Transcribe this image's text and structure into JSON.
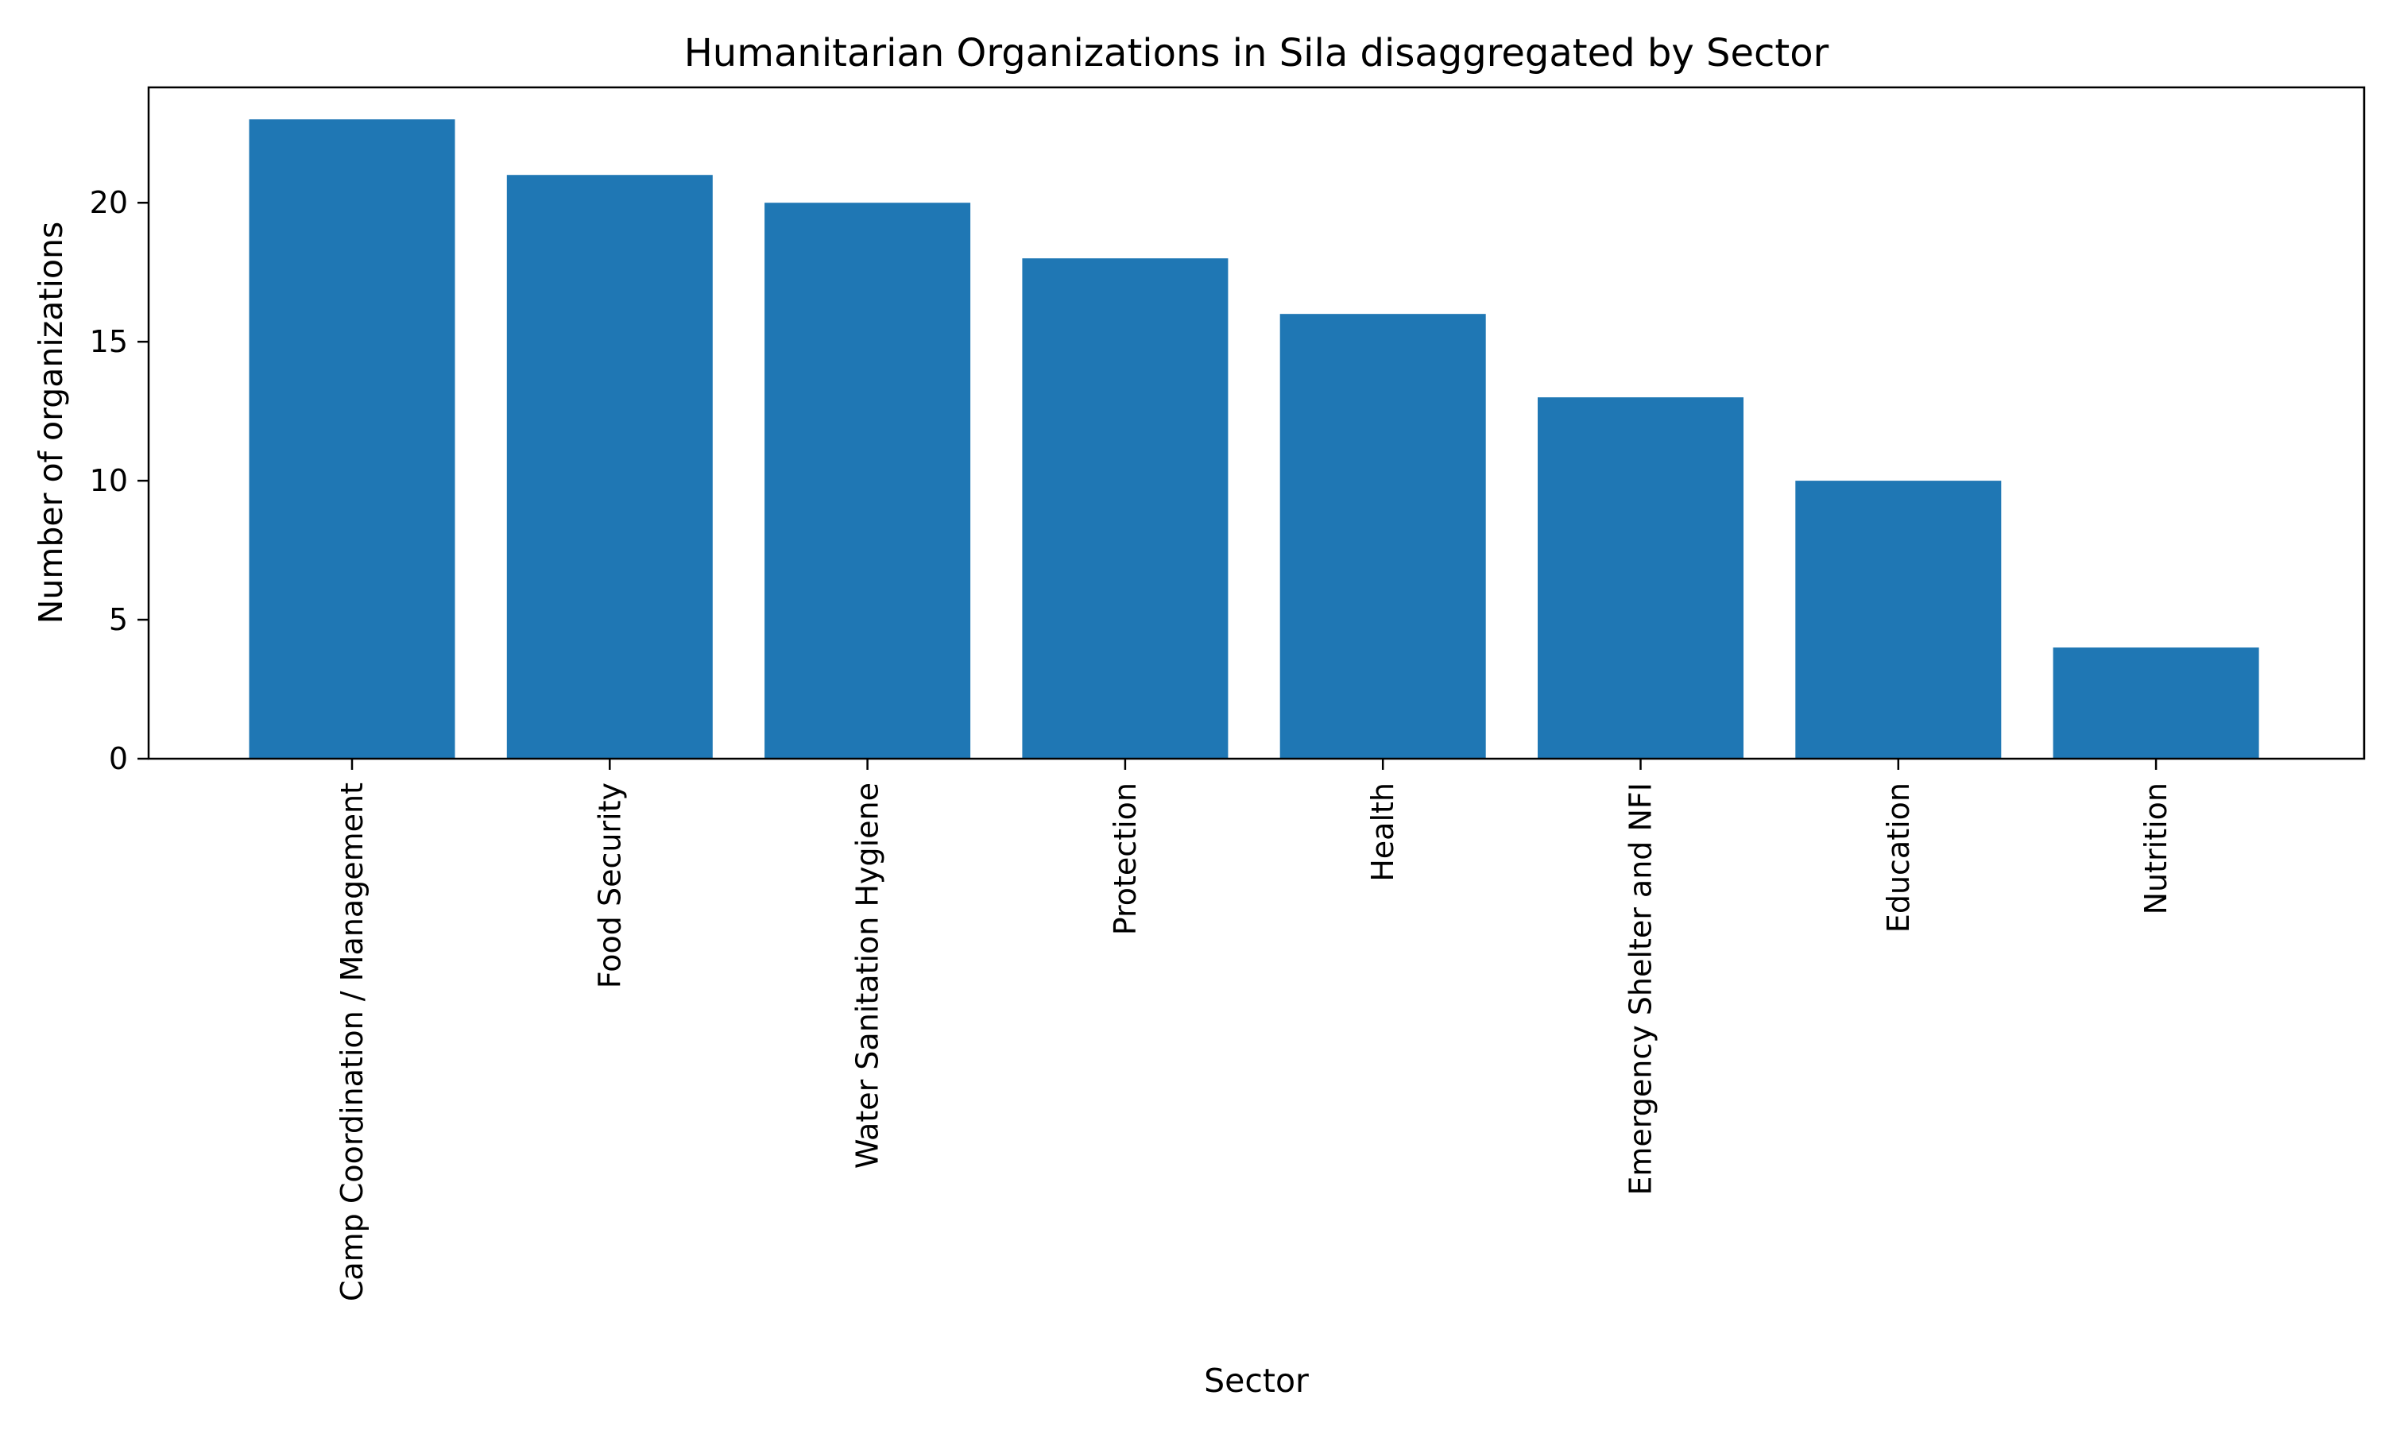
{
  "chart_data": {
    "type": "bar",
    "title": "Humanitarian Organizations in Sila disaggregated by Sector",
    "xlabel": "Sector",
    "ylabel": "Number of organizations",
    "categories": [
      "Camp Coordination / Management",
      "Food Security",
      "Water Sanitation Hygiene",
      "Protection",
      "Health",
      "Emergency Shelter and NFI",
      "Education",
      "Nutrition"
    ],
    "values": [
      23,
      21,
      20,
      18,
      16,
      13,
      10,
      4
    ],
    "ylim": [
      0,
      24.15
    ],
    "yticks": [
      "0",
      "5",
      "10",
      "15",
      "20"
    ],
    "grid": false,
    "bar_color": "#1f77b4"
  }
}
